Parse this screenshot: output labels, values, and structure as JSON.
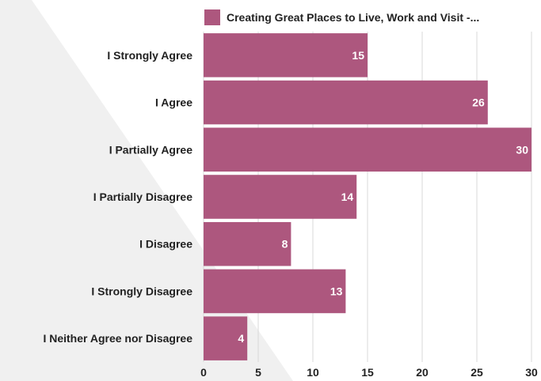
{
  "chart_data": {
    "type": "bar",
    "orientation": "horizontal",
    "categories": [
      "I Strongly Agree",
      "I Agree",
      "I Partially Agree",
      "I Partially Disagree",
      "I Disagree",
      "I Strongly Disagree",
      "I Neither Agree nor Disagree"
    ],
    "series": [
      {
        "name": "Creating Great Places to Live, Work and Visit -...",
        "values": [
          15,
          26,
          30,
          14,
          8,
          13,
          4
        ],
        "color": "#ad577e"
      }
    ],
    "x_ticks": [
      "0",
      "5",
      "10",
      "15",
      "20",
      "25",
      "30"
    ],
    "xlim": [
      0,
      30
    ],
    "grid": true,
    "legend_position": "top",
    "data_labels": true
  },
  "colors": {
    "bar": "#ad577e",
    "grid": "#d9d9d9",
    "background_shape": "#f0f0f0"
  }
}
